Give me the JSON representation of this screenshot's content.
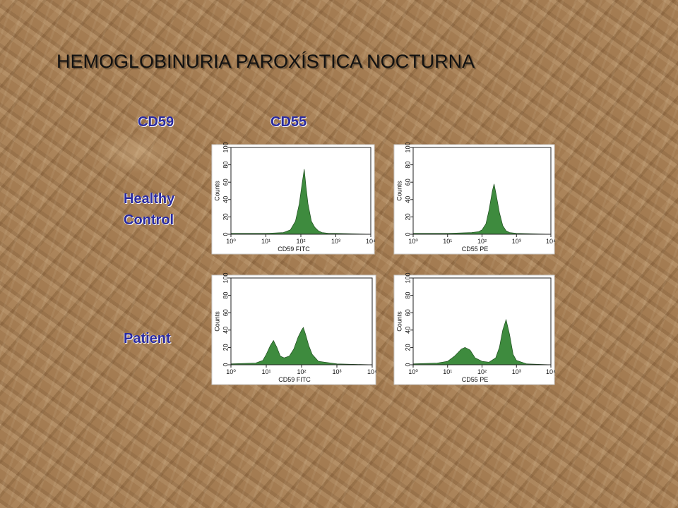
{
  "slide": {
    "title": "HEMOGLOBINURIA PAROXÍSTICA NOCTURNA",
    "column_labels": [
      "CD59",
      "CD55"
    ],
    "row_labels": [
      "Healthy Control",
      "Patient"
    ]
  },
  "chart_data": [
    {
      "type": "area",
      "xlabel": "CD59 FITC",
      "ylabel": "Counts",
      "xscale": "log",
      "color": "#3e8b3e",
      "xlim": [
        1,
        10000
      ],
      "ylim": [
        0,
        100
      ],
      "xticks": [
        {
          "value": 1,
          "label": "10⁰"
        },
        {
          "value": 10,
          "label": "10¹"
        },
        {
          "value": 100,
          "label": "10²"
        },
        {
          "value": 1000,
          "label": "10³"
        },
        {
          "value": 10000,
          "label": "10⁴"
        }
      ],
      "yticks": [
        0,
        20,
        40,
        60,
        80,
        100
      ],
      "x": [
        1,
        10,
        31.6,
        50,
        70,
        90,
        110,
        125,
        140,
        160,
        200,
        250,
        316,
        400,
        630,
        1000,
        10000
      ],
      "values": [
        1,
        1,
        2,
        5,
        15,
        35,
        60,
        75,
        55,
        35,
        15,
        8,
        4,
        2,
        1,
        1,
        0
      ]
    },
    {
      "type": "area",
      "xlabel": "CD55 PE",
      "ylabel": "Counts",
      "xscale": "log",
      "color": "#3e8b3e",
      "xlim": [
        1,
        10000
      ],
      "ylim": [
        0,
        100
      ],
      "xticks": [
        {
          "value": 1,
          "label": "10⁰"
        },
        {
          "value": 10,
          "label": "10¹"
        },
        {
          "value": 100,
          "label": "10²"
        },
        {
          "value": 1000,
          "label": "10³"
        },
        {
          "value": 10000,
          "label": "10⁴"
        }
      ],
      "yticks": [
        0,
        20,
        40,
        60,
        80,
        100
      ],
      "x": [
        1,
        10,
        50,
        80,
        100,
        130,
        160,
        200,
        224,
        260,
        320,
        400,
        500,
        630,
        1000,
        10000
      ],
      "values": [
        1,
        1,
        2,
        3,
        5,
        12,
        28,
        50,
        58,
        45,
        25,
        10,
        4,
        2,
        1,
        0
      ]
    },
    {
      "type": "area",
      "xlabel": "CD59 FITC",
      "ylabel": "Counts",
      "xscale": "log",
      "color": "#3e8b3e",
      "xlim": [
        1,
        10000
      ],
      "ylim": [
        0,
        100
      ],
      "xticks": [
        {
          "value": 1,
          "label": "10⁰"
        },
        {
          "value": 10,
          "label": "10¹"
        },
        {
          "value": 100,
          "label": "10²"
        },
        {
          "value": 1000,
          "label": "10³"
        },
        {
          "value": 10000,
          "label": "10⁴"
        }
      ],
      "yticks": [
        0,
        20,
        40,
        60,
        80,
        100
      ],
      "x": [
        1,
        5,
        8,
        10,
        13,
        16,
        20,
        25,
        32,
        45,
        60,
        80,
        100,
        112,
        130,
        160,
        200,
        300,
        1000,
        10000
      ],
      "values": [
        1,
        2,
        5,
        12,
        22,
        28,
        20,
        10,
        8,
        10,
        18,
        32,
        40,
        43,
        35,
        22,
        12,
        4,
        1,
        0
      ]
    },
    {
      "type": "area",
      "xlabel": "CD55 PE",
      "ylabel": "Counts",
      "xscale": "log",
      "color": "#3e8b3e",
      "xlim": [
        1,
        10000
      ],
      "ylim": [
        0,
        100
      ],
      "xticks": [
        {
          "value": 1,
          "label": "10⁰"
        },
        {
          "value": 10,
          "label": "10¹"
        },
        {
          "value": 100,
          "label": "10²"
        },
        {
          "value": 1000,
          "label": "10³"
        },
        {
          "value": 10000,
          "label": "10⁴"
        }
      ],
      "yticks": [
        0,
        20,
        40,
        60,
        80,
        100
      ],
      "x": [
        1,
        5,
        10,
        16,
        25,
        32,
        45,
        63,
        100,
        160,
        250,
        320,
        400,
        500,
        630,
        800,
        1000,
        2000,
        10000
      ],
      "values": [
        1,
        2,
        4,
        10,
        18,
        20,
        17,
        8,
        4,
        3,
        8,
        20,
        40,
        52,
        35,
        12,
        5,
        1,
        0
      ]
    }
  ]
}
